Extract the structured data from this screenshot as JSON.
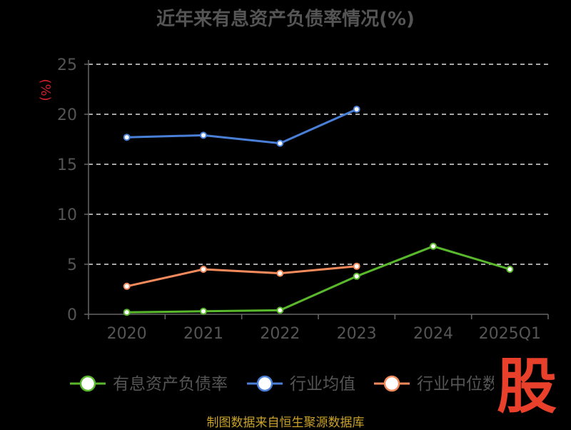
{
  "chart_data": {
    "type": "line",
    "title": "近年来有息资产负债率情况(%)",
    "ylabel": "(%)",
    "categories": [
      "2020",
      "2021",
      "2022",
      "2023",
      "2024",
      "2025Q1"
    ],
    "yticks": [
      "0",
      "5",
      "10",
      "15",
      "20",
      "25"
    ],
    "ylim": [
      0,
      25
    ],
    "grid": true,
    "legend_position": "bottom",
    "series": [
      {
        "name": "有息资产负债率",
        "color": "#5ab82c",
        "values": [
          0.2,
          0.3,
          0.4,
          3.8,
          6.8,
          4.5
        ]
      },
      {
        "name": "行业均值",
        "color": "#4a7fd8",
        "values": [
          17.7,
          17.9,
          17.1,
          20.5,
          null,
          null
        ]
      },
      {
        "name": "行业中位数",
        "color": "#f28a5c",
        "values": [
          2.8,
          4.5,
          4.1,
          4.8,
          null,
          null
        ]
      }
    ]
  },
  "footer": "制图数据来自恒生聚源数据库",
  "logo_text": "股"
}
